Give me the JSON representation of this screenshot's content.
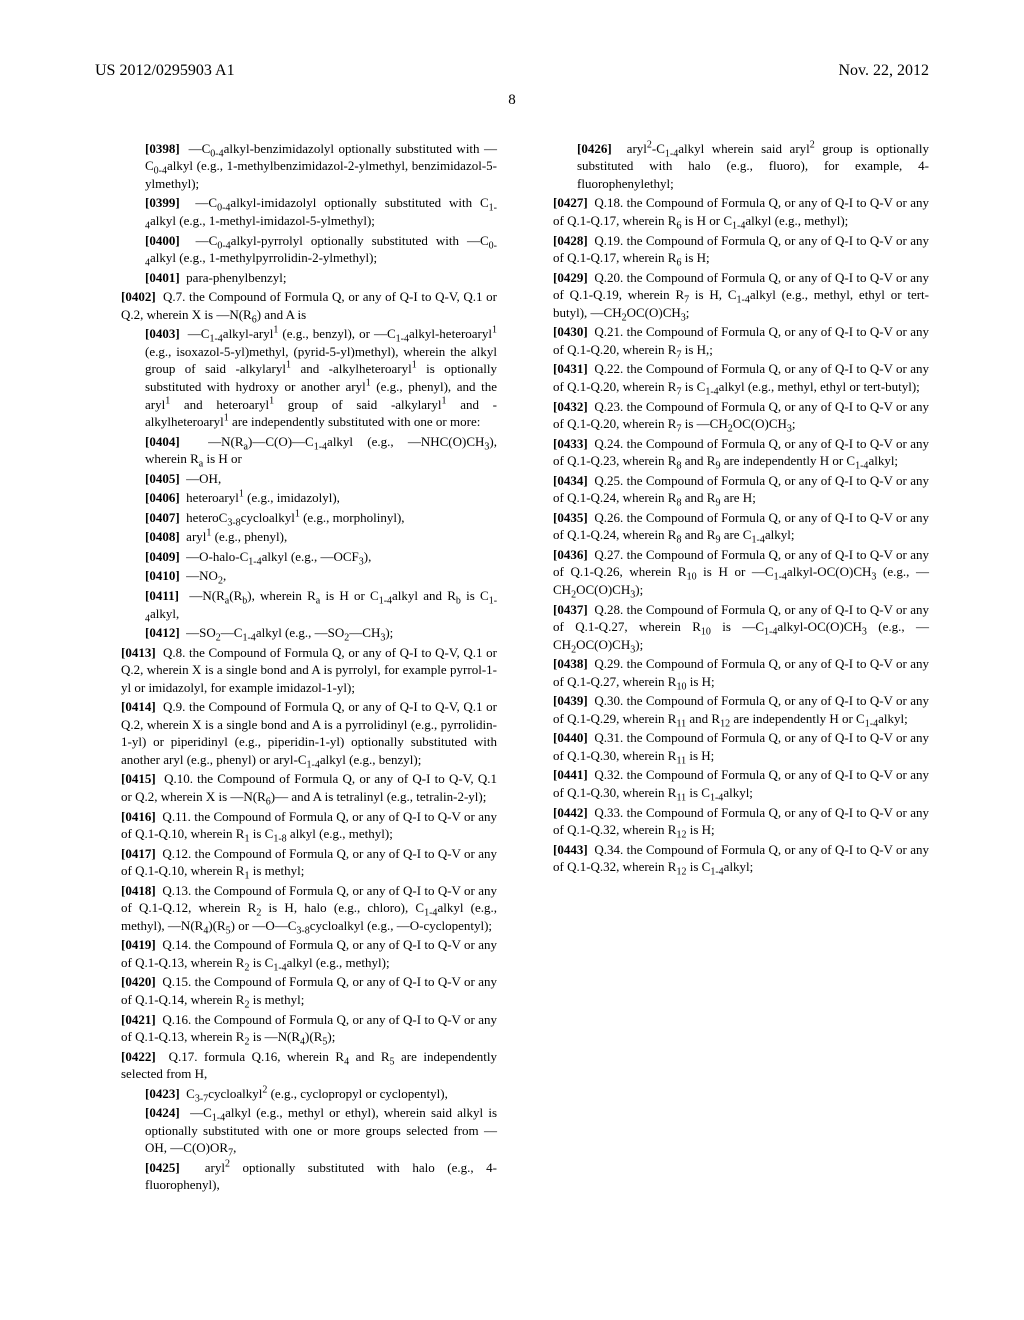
{
  "header": {
    "left": "US 2012/0295903 A1",
    "right": "Nov. 22, 2012"
  },
  "pagenum": "8",
  "paras": [
    {
      "cls": "ind2",
      "html": "<span class='pnum'>[0398]</span>&nbsp;&nbsp;—C<sub>0-4</sub>alkyl-benzimidazolyl optionally substituted with —C<sub>0-4</sub>alkyl (e.g., 1-methylbenzimidazol-2-ylmethyl, benzimidazol-5-ylmethyl);"
    },
    {
      "cls": "ind2",
      "html": "<span class='pnum'>[0399]</span>&nbsp;&nbsp;—C<sub>0-4</sub>alkyl-imidazolyl optionally substituted with C<sub>1-4</sub>alkyl (e.g., 1-methyl-imidazol-5-ylmethyl);"
    },
    {
      "cls": "ind2",
      "html": "<span class='pnum'>[0400]</span>&nbsp;&nbsp;—C<sub>0-4</sub>alkyl-pyrrolyl optionally substituted with —C<sub>0-4</sub>alkyl (e.g., 1-methylpyrrolidin-2-ylmethyl);"
    },
    {
      "cls": "ind2",
      "html": "<span class='pnum'>[0401]</span>&nbsp;&nbsp;para-phenylbenzyl;"
    },
    {
      "cls": "ind1",
      "html": "<span class='pnum'>[0402]</span>&nbsp;&nbsp;Q.7. the Compound of Formula Q, or any of Q-I to Q-V, Q.1 or Q.2, wherein X is —N(R<sub>6</sub>) and A is"
    },
    {
      "cls": "ind2",
      "html": "<span class='pnum'>[0403]</span>&nbsp;&nbsp;—C<sub>1-4</sub>alkyl-aryl<sup>1</sup> (e.g., benzyl), or —C<sub>1-4</sub>alkyl-heteroaryl<sup>1</sup> (e.g., isoxazol-5-yl)methyl, (pyrid-5-yl)methyl), wherein the alkyl group of said -alkylaryl<sup>1</sup> and -alkylheteroaryl<sup>1</sup> is optionally substituted with hydroxy or another aryl<sup>1</sup> (e.g., phenyl), and the aryl<sup>1</sup> and heteroaryl<sup>1</sup> group of said -alkylaryl<sup>1</sup> and -alkylheteroaryl<sup>1</sup> are independently substituted with one or more:"
    },
    {
      "cls": "ind2",
      "html": "<span class='pnum'>[0404]</span>&nbsp;&nbsp;—N(R<sub>a</sub>)—C(O)—C<sub>1-4</sub>alkyl (e.g., —NHC(O)CH<sub>3</sub>), wherein R<sub>a</sub> is H or"
    },
    {
      "cls": "ind2",
      "html": "<span class='pnum'>[0405]</span>&nbsp;&nbsp;—OH,"
    },
    {
      "cls": "ind2",
      "html": "<span class='pnum'>[0406]</span>&nbsp;&nbsp;heteroaryl<sup>1</sup> (e.g., imidazolyl),"
    },
    {
      "cls": "ind2",
      "html": "<span class='pnum'>[0407]</span>&nbsp;&nbsp;heteroC<sub>3-8</sub>cycloalkyl<sup>1</sup> (e.g., morpholinyl),"
    },
    {
      "cls": "ind2",
      "html": "<span class='pnum'>[0408]</span>&nbsp;&nbsp;aryl<sup>1</sup> (e.g., phenyl),"
    },
    {
      "cls": "ind2",
      "html": "<span class='pnum'>[0409]</span>&nbsp;&nbsp;—O-halo-C<sub>1-4</sub>alkyl (e.g., —OCF<sub>3</sub>),"
    },
    {
      "cls": "ind2",
      "html": "<span class='pnum'>[0410]</span>&nbsp;&nbsp;—NO<sub>2</sub>,"
    },
    {
      "cls": "ind2",
      "html": "<span class='pnum'>[0411]</span>&nbsp;&nbsp;—N(R<sub>a</sub>(R<sub>b</sub>), wherein R<sub>a</sub> is H or C<sub>1-4</sub>alkyl and R<sub>b</sub> is C<sub>1-4</sub>alkyl,"
    },
    {
      "cls": "ind2",
      "html": "<span class='pnum'>[0412]</span>&nbsp;&nbsp;—SO<sub>2</sub>—C<sub>1-4</sub>alkyl (e.g., —SO<sub>2</sub>—CH<sub>3</sub>);"
    },
    {
      "cls": "ind1",
      "html": "<span class='pnum'>[0413]</span>&nbsp;&nbsp;Q.8. the Compound of Formula Q, or any of Q-I to Q-V, Q.1 or Q.2, wherein X is a single bond and A is pyrrolyl, for example pyrrol-1-yl or imidazolyl, for example imidazol-1-yl);"
    },
    {
      "cls": "ind1",
      "html": "<span class='pnum'>[0414]</span>&nbsp;&nbsp;Q.9. the Compound of Formula Q, or any of Q-I to Q-V, Q.1 or Q.2, wherein X is a single bond and A is a pyrrolidinyl (e.g., pyrrolidin-1-yl) or piperidinyl (e.g., piperidin-1-yl) optionally substituted with another aryl (e.g., phenyl) or aryl-C<sub>1-4</sub>alkyl (e.g., benzyl);"
    },
    {
      "cls": "ind1",
      "html": "<span class='pnum'>[0415]</span>&nbsp;&nbsp;Q.10. the Compound of Formula Q, or any of Q-I to Q-V, Q.1 or Q.2, wherein X is —N(R<sub>6</sub>)— and A is tetralinyl (e.g., tetralin-2-yl);"
    },
    {
      "cls": "ind1",
      "html": "<span class='pnum'>[0416]</span>&nbsp;&nbsp;Q.11. the Compound of Formula Q, or any of Q-I to Q-V or any of Q.1-Q.10, wherein R<sub>1</sub> is C<sub>1-8</sub> alkyl (e.g., methyl);"
    },
    {
      "cls": "ind1",
      "html": "<span class='pnum'>[0417]</span>&nbsp;&nbsp;Q.12. the Compound of Formula Q, or any of Q-I to Q-V or any of Q.1-Q.10, wherein R<sub>1</sub> is methyl;"
    },
    {
      "cls": "ind1",
      "html": "<span class='pnum'>[0418]</span>&nbsp;&nbsp;Q.13. the Compound of Formula Q, or any of Q-I to Q-V or any of Q.1-Q.12, wherein R<sub>2</sub> is H, halo (e.g., chloro), C<sub>1-4</sub>alkyl (e.g., methyl), —N(R<sub>4</sub>)(R<sub>5</sub>) or —O—C<sub>3-8</sub>cycloalkyl (e.g., —O-cyclopentyl);"
    },
    {
      "cls": "ind1",
      "html": "<span class='pnum'>[0419]</span>&nbsp;&nbsp;Q.14. the Compound of Formula Q, or any of Q-I to Q-V or any of Q.1-Q.13, wherein R<sub>2</sub> is C<sub>1-4</sub>alkyl (e.g., methyl);"
    },
    {
      "cls": "ind1",
      "html": "<span class='pnum'>[0420]</span>&nbsp;&nbsp;Q.15. the Compound of Formula Q, or any of Q-I to Q-V or any of Q.1-Q.14, wherein R<sub>2</sub> is methyl;"
    },
    {
      "cls": "ind1",
      "html": "<span class='pnum'>[0421]</span>&nbsp;&nbsp;Q.16. the Compound of Formula Q, or any of Q-I to Q-V or any of Q.1-Q.13, wherein R<sub>2</sub> is —N(R<sub>4</sub>)(R<sub>5</sub>);"
    },
    {
      "cls": "ind1",
      "html": "<span class='pnum'>[0422]</span>&nbsp;&nbsp;Q.17. formula Q.16, wherein R<sub>4</sub> and R<sub>5</sub> are independently selected from H,"
    },
    {
      "cls": "ind2",
      "html": "<span class='pnum'>[0423]</span>&nbsp;&nbsp;C<sub>3-7</sub>cycloalkyl<sup>2</sup> (e.g., cyclopropyl or cyclopentyl),"
    },
    {
      "cls": "ind2",
      "html": "<span class='pnum'>[0424]</span>&nbsp;&nbsp;—C<sub>1-4</sub>alkyl (e.g., methyl or ethyl), wherein said alkyl is optionally substituted with one or more groups selected from —OH, —C(O)OR<sub>7</sub>,"
    },
    {
      "cls": "ind2",
      "html": "<span class='pnum'>[0425]</span>&nbsp;&nbsp;aryl<sup>2</sup> optionally substituted with halo (e.g., 4-fluorophenyl),"
    },
    {
      "cls": "ind2",
      "html": "<span class='pnum'>[0426]</span>&nbsp;&nbsp;aryl<sup>2</sup>-C<sub>1-4</sub>alkyl wherein said aryl<sup>2</sup> group is optionally substituted with halo (e.g., fluoro), for example, 4-fluorophenylethyl;"
    },
    {
      "cls": "ind1",
      "html": "<span class='pnum'>[0427]</span>&nbsp;&nbsp;Q.18. the Compound of Formula Q, or any of Q-I to Q-V or any of Q.1-Q.17, wherein R<sub>6</sub> is H or C<sub>1-4</sub>alkyl (e.g., methyl);"
    },
    {
      "cls": "ind1",
      "html": "<span class='pnum'>[0428]</span>&nbsp;&nbsp;Q.19. the Compound of Formula Q, or any of Q-I to Q-V or any of Q.1-Q.17, wherein R<sub>6</sub> is H;"
    },
    {
      "cls": "ind1",
      "html": "<span class='pnum'>[0429]</span>&nbsp;&nbsp;Q.20. the Compound of Formula Q, or any of Q-I to Q-V or any of Q.1-Q.19, wherein R<sub>7</sub> is H, C<sub>1-4</sub>alkyl (e.g., methyl, ethyl or tert-butyl), —CH<sub>2</sub>OC(O)CH<sub>3</sub>;"
    },
    {
      "cls": "ind1",
      "html": "<span class='pnum'>[0430]</span>&nbsp;&nbsp;Q.21. the Compound of Formula Q, or any of Q-I to Q-V or any of Q.1-Q.20, wherein R<sub>7</sub> is H,;"
    },
    {
      "cls": "ind1",
      "html": "<span class='pnum'>[0431]</span>&nbsp;&nbsp;Q.22. the Compound of Formula Q, or any of Q-I to Q-V or any of Q.1-Q.20, wherein R<sub>7</sub> is C<sub>1-4</sub>alkyl (e.g., methyl, ethyl or tert-butyl);"
    },
    {
      "cls": "ind1",
      "html": "<span class='pnum'>[0432]</span>&nbsp;&nbsp;Q.23. the Compound of Formula Q, or any of Q-I to Q-V or any of Q.1-Q.20, wherein R<sub>7</sub> is —CH<sub>2</sub>OC(O)CH<sub>3</sub>;"
    },
    {
      "cls": "ind1",
      "html": "<span class='pnum'>[0433]</span>&nbsp;&nbsp;Q.24. the Compound of Formula Q, or any of Q-I to Q-V or any of Q.1-Q.23, wherein R<sub>8</sub> and R<sub>9</sub> are independently H or C<sub>1-4</sub>alkyl;"
    },
    {
      "cls": "ind1",
      "html": "<span class='pnum'>[0434]</span>&nbsp;&nbsp;Q.25. the Compound of Formula Q, or any of Q-I to Q-V or any of Q.1-Q.24, wherein R<sub>8</sub> and R<sub>9</sub> are H;"
    },
    {
      "cls": "ind1",
      "html": "<span class='pnum'>[0435]</span>&nbsp;&nbsp;Q.26. the Compound of Formula Q, or any of Q-I to Q-V or any of Q.1-Q.24, wherein R<sub>8</sub> and R<sub>9</sub> are C<sub>1-4</sub>alkyl;"
    },
    {
      "cls": "ind1",
      "html": "<span class='pnum'>[0436]</span>&nbsp;&nbsp;Q.27. the Compound of Formula Q, or any of Q-I to Q-V or any of Q.1-Q.26, wherein R<sub>10</sub> is H or —C<sub>1-4</sub>alkyl-OC(O)CH<sub>3</sub> (e.g., —CH<sub>2</sub>OC(O)CH<sub>3</sub>);"
    },
    {
      "cls": "ind1",
      "html": "<span class='pnum'>[0437]</span>&nbsp;&nbsp;Q.28. the Compound of Formula Q, or any of Q-I to Q-V or any of Q.1-Q.27, wherein R<sub>10</sub> is —C<sub>1-4</sub>alkyl-OC(O)CH<sub>3</sub> (e.g., —CH<sub>2</sub>OC(O)CH<sub>3</sub>);"
    },
    {
      "cls": "ind1",
      "html": "<span class='pnum'>[0438]</span>&nbsp;&nbsp;Q.29. the Compound of Formula Q, or any of Q-I to Q-V or any of Q.1-Q.27, wherein R<sub>10</sub> is H;"
    },
    {
      "cls": "ind1",
      "html": "<span class='pnum'>[0439]</span>&nbsp;&nbsp;Q.30. the Compound of Formula Q, or any of Q-I to Q-V or any of Q.1-Q.29, wherein R<sub>11</sub> and R<sub>12</sub> are independently H or C<sub>1-4</sub>alkyl;"
    },
    {
      "cls": "ind1",
      "html": "<span class='pnum'>[0440]</span>&nbsp;&nbsp;Q.31. the Compound of Formula Q, or any of Q-I to Q-V or any of Q.1-Q.30, wherein R<sub>11</sub> is H;"
    },
    {
      "cls": "ind1",
      "html": "<span class='pnum'>[0441]</span>&nbsp;&nbsp;Q.32. the Compound of Formula Q, or any of Q-I to Q-V or any of Q.1-Q.30, wherein R<sub>11</sub> is C<sub>1-4</sub>alkyl;"
    },
    {
      "cls": "ind1",
      "html": "<span class='pnum'>[0442]</span>&nbsp;&nbsp;Q.33. the Compound of Formula Q, or any of Q-I to Q-V or any of Q.1-Q.32, wherein R<sub>12</sub> is H;"
    },
    {
      "cls": "ind1",
      "html": "<span class='pnum'>[0443]</span>&nbsp;&nbsp;Q.34. the Compound of Formula Q, or any of Q-I to Q-V or any of Q.1-Q.32, wherein R<sub>12</sub> is C<sub>1-4</sub>alkyl;"
    }
  ]
}
